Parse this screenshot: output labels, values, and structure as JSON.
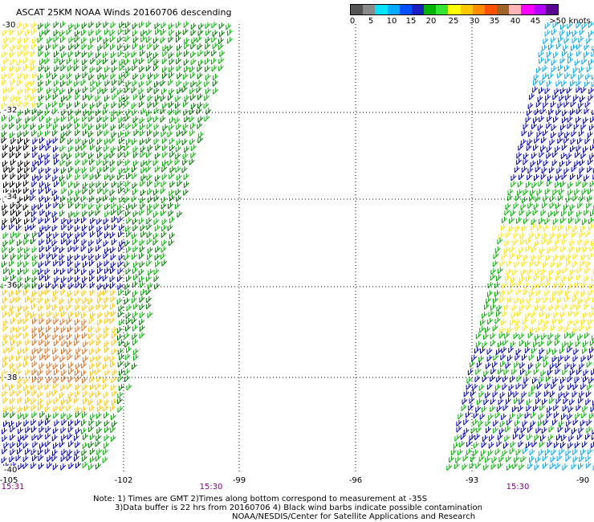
{
  "title": "ASCAT 25KM NOAA Winds 20160706 descending",
  "colorbar": {
    "colors": [
      "#555555",
      "#8a8a8a",
      "#00e5ff",
      "#00aaff",
      "#0050ff",
      "#1e1ebe",
      "#00b400",
      "#32e632",
      "#ffff00",
      "#ffc800",
      "#ff8c00",
      "#ff5000",
      "#a06428",
      "#ffb4b4",
      "#ff00ff",
      "#b400ff",
      "#5a0090"
    ],
    "labels": [
      "0",
      "5",
      "10",
      "15",
      "20",
      "25",
      "30",
      "35",
      "40",
      "45",
      ">50 knots"
    ]
  },
  "lat_labels": [
    "-30",
    "-32",
    "-34",
    "-36",
    "-38",
    "-40"
  ],
  "lon_labels": [
    "-105",
    "-102",
    "-99",
    "-96",
    "-93",
    "-90"
  ],
  "time_labels": [
    "15:31",
    "15:30",
    "15:30"
  ],
  "notes": [
    "Note: 1) Times are GMT 2)Times along bottom correspond to measurement at -35S",
    "3)Data buffer is 22 hrs from 20160706 4) Black wind barbs indicate possible contamination",
    "NOAA/NESDIS/Center for Satellite Applications and Research"
  ]
}
